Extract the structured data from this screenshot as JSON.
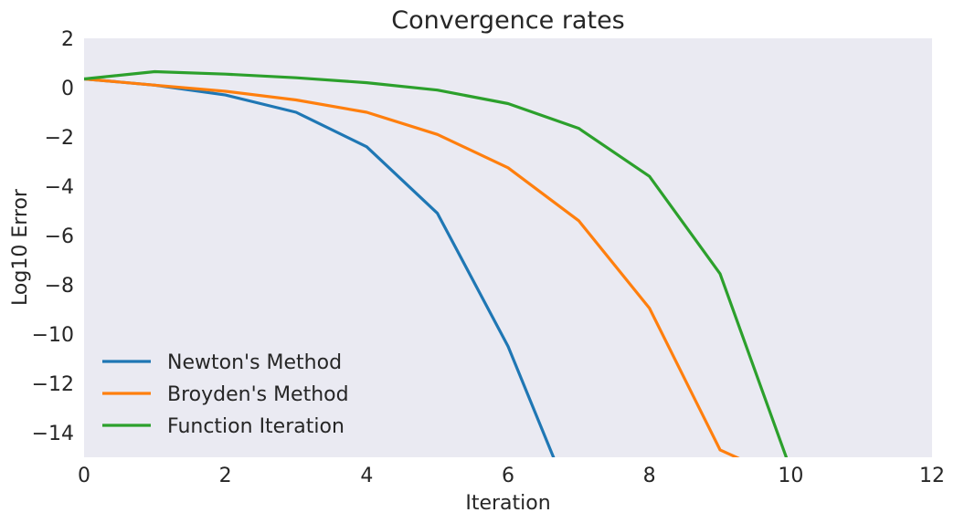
{
  "chart_data": {
    "type": "line",
    "title": "Convergence rates",
    "xlabel": "Iteration",
    "ylabel": "Log10 Error",
    "xlim": [
      0,
      12
    ],
    "ylim": [
      -15,
      2
    ],
    "xticks": [
      "0",
      "2",
      "4",
      "6",
      "8",
      "10",
      "12"
    ],
    "yticks": [
      "2",
      "0",
      "−2",
      "−4",
      "−6",
      "−8",
      "−10",
      "−12",
      "−14"
    ],
    "grid": false,
    "background": "#eaeaf2",
    "legend": "lower-left",
    "series": [
      {
        "name": "Newton's Method",
        "color": "#1f77b4",
        "x": [
          0,
          1,
          2,
          3,
          4,
          5,
          6,
          7
        ],
        "y": [
          0.35,
          0.1,
          -0.3,
          -1.0,
          -2.4,
          -5.1,
          -10.5,
          -17.5
        ]
      },
      {
        "name": "Broyden's Method",
        "color": "#ff7f0e",
        "x": [
          0,
          1,
          2,
          3,
          4,
          5,
          6,
          7,
          8,
          9,
          10
        ],
        "y": [
          0.35,
          0.1,
          -0.15,
          -0.5,
          -1.0,
          -1.9,
          -3.25,
          -5.4,
          -8.95,
          -14.7,
          -16.0
        ]
      },
      {
        "name": "Function Iteration",
        "color": "#2ca02c",
        "x": [
          0,
          1,
          2,
          3,
          4,
          5,
          6,
          7,
          8,
          9,
          10
        ],
        "y": [
          0.35,
          0.65,
          0.55,
          0.4,
          0.2,
          -0.1,
          -0.65,
          -1.65,
          -3.6,
          -7.55,
          -15.5
        ]
      }
    ]
  }
}
